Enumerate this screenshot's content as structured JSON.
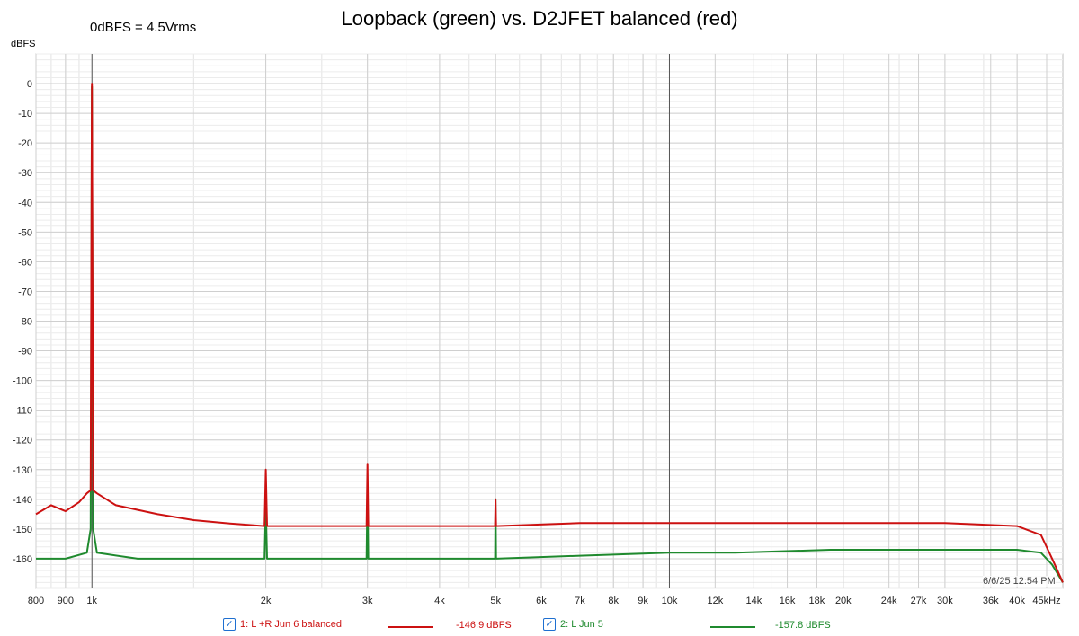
{
  "chart_data": {
    "type": "line",
    "title": "Loopback (green) vs. D2JFET balanced (red)",
    "annotation": "0dBFS = 4.5Vrms",
    "ylabel": "dBFS",
    "xunit": "kHz",
    "xscale": "log",
    "xlim": [
      800,
      48000
    ],
    "ylim": [
      -170,
      10
    ],
    "grid": true,
    "timestamp": "6/6/25 12:54 PM",
    "x_ticks": [
      800,
      900,
      1000,
      2000,
      3000,
      4000,
      5000,
      6000,
      7000,
      8000,
      9000,
      10000,
      12000,
      14000,
      16000,
      18000,
      20000,
      24000,
      27000,
      30000,
      36000,
      40000,
      45000
    ],
    "x_tick_labels": [
      "800",
      "900",
      "1k",
      "2k",
      "3k",
      "4k",
      "5k",
      "6k",
      "7k",
      "8k",
      "9k",
      "10k",
      "12k",
      "14k",
      "16k",
      "18k",
      "20k",
      "24k",
      "27k",
      "30k",
      "36k",
      "40k",
      "45kHz"
    ],
    "y_ticks": [
      0,
      -10,
      -20,
      -30,
      -40,
      -50,
      -60,
      -70,
      -80,
      -90,
      -100,
      -110,
      -120,
      -130,
      -140,
      -150,
      -160
    ],
    "y_tick_labels": [
      "0",
      "-10",
      "-20",
      "-30",
      "-40",
      "-50",
      "-60",
      "-70",
      "-80",
      "-90",
      "-100",
      "-110",
      "-120",
      "-130",
      "-140",
      "-150",
      "-160"
    ],
    "series": [
      {
        "name": "1: L +R Jun 6 balanced",
        "color": "#cc1111",
        "legend_value": "-146.9 dBFS",
        "x": [
          800,
          850,
          900,
          950,
          980,
          995,
          1000,
          1005,
          1020,
          1100,
          1300,
          1500,
          1700,
          1990,
          2000,
          2010,
          2500,
          2990,
          3000,
          3010,
          4000,
          4990,
          5000,
          5010,
          7000,
          10000,
          13000,
          19000,
          20000,
          30000,
          40000,
          44000,
          46000,
          48000
        ],
        "values": [
          -145,
          -142,
          -144,
          -141,
          -138,
          -137,
          0,
          -137,
          -138,
          -142,
          -145,
          -147,
          -148,
          -149,
          -130,
          -149,
          -149,
          -149,
          -128,
          -149,
          -149,
          -149,
          -140,
          -149,
          -148,
          -148,
          -148,
          -148,
          -148,
          -148,
          -149,
          -152,
          -160,
          -168
        ]
      },
      {
        "name": "2: L Jun 5",
        "color": "#1f8a2e",
        "legend_value": "-157.8 dBFS",
        "x": [
          800,
          900,
          980,
          995,
          1000,
          1005,
          1020,
          1200,
          1990,
          2000,
          2010,
          2990,
          3000,
          3010,
          4990,
          5000,
          5010,
          7000,
          10000,
          13000,
          19000,
          20000,
          30000,
          40000,
          44000,
          46000,
          48000
        ],
        "values": [
          -160,
          -160,
          -158,
          -150,
          -1,
          -150,
          -158,
          -160,
          -160,
          -142,
          -160,
          -160,
          -135,
          -160,
          -160,
          -140,
          -160,
          -159,
          -158,
          -158,
          -157,
          -157,
          -157,
          -157,
          -158,
          -162,
          -168
        ]
      }
    ]
  }
}
